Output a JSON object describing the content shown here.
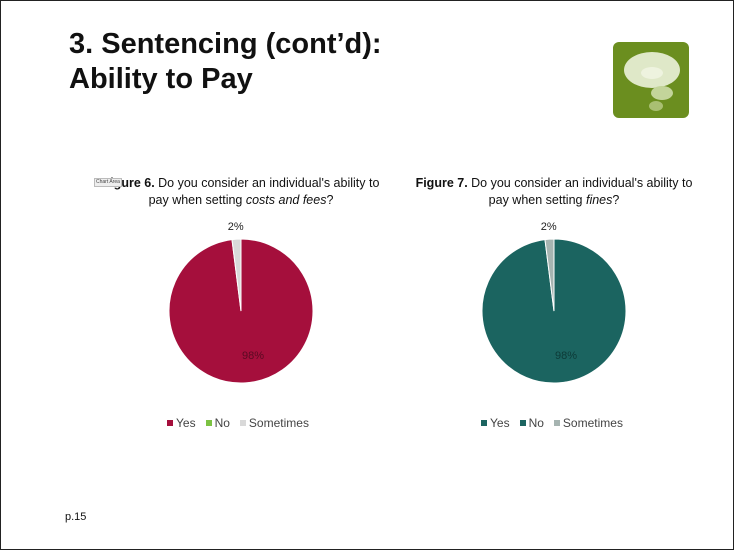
{
  "slide": {
    "title_line1": "3. Sentencing (cont’d):",
    "title_line2": "Ability to Pay",
    "chart_area_tag": "Chart Area",
    "page_number": "p.15"
  },
  "chart_data": [
    {
      "type": "pie",
      "figure_label": "Figure 6.",
      "question_pre": " Do you consider an individual's ability to pay when setting ",
      "question_em": "costs and fees",
      "question_post": "?",
      "categories": [
        "Yes",
        "No",
        "Sometimes"
      ],
      "values": [
        98,
        0,
        2
      ],
      "data_labels": [
        "98%",
        "",
        "2%"
      ],
      "colors": [
        "#a50f3c",
        "#7cc242",
        "#d9d9d9"
      ],
      "legend_position": "bottom"
    },
    {
      "type": "pie",
      "figure_label": "Figure 7.",
      "question_pre": " Do you consider an individual's ability to pay when setting ",
      "question_em": "fines",
      "question_post": "?",
      "categories": [
        "Yes",
        "No",
        "Sometimes"
      ],
      "values": [
        98,
        0,
        2
      ],
      "data_labels": [
        "98%",
        "",
        "2%"
      ],
      "colors": [
        "#1b6460",
        "#1b6460",
        "#a6b4b1"
      ],
      "legend_position": "bottom"
    }
  ]
}
